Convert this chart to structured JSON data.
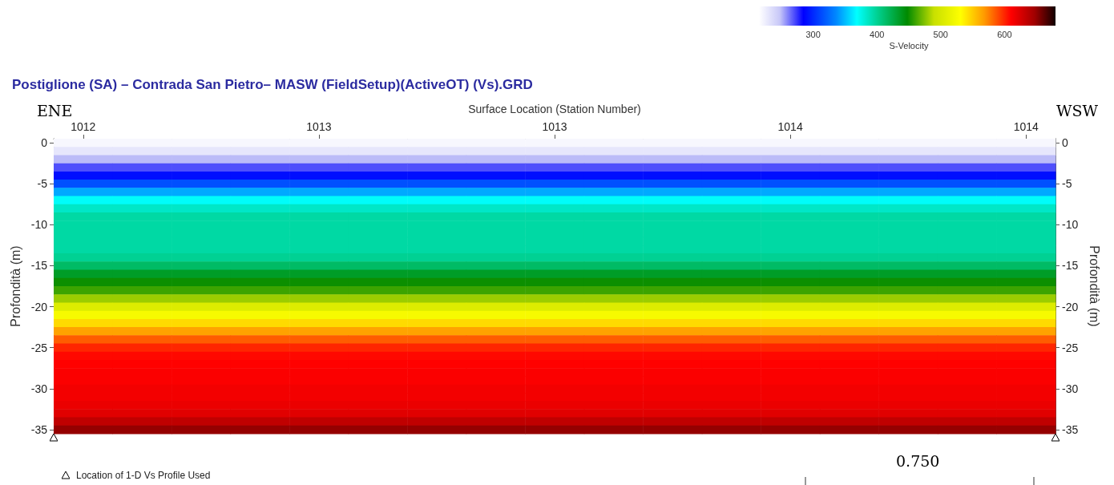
{
  "chart_data": {
    "type": "heatmap",
    "title": "Postiglione (SA) – Contrada San Pietro– MASW (FieldSetup)(ActiveOT) (Vs).GRD",
    "xlabel": "Surface Location (Station Number)",
    "ylabel": "Profondità (m)",
    "y2label": "Profondità (m)",
    "clabel": "S-Velocity",
    "annotations": [
      "ENE",
      "WSW",
      "0.750",
      "Location of 1-D Vs Profile Used"
    ],
    "categories": [
      "1012",
      null,
      null,
      null,
      "1013",
      null,
      null,
      null,
      "1013",
      null,
      null,
      null,
      "1014",
      null,
      null,
      null,
      "1014"
    ],
    "y_categories": [
      "0",
      null,
      null,
      null,
      null,
      "-5",
      null,
      null,
      null,
      null,
      "-10",
      null,
      null,
      null,
      null,
      "-15",
      null,
      null,
      null,
      null,
      "-20",
      null,
      null,
      null,
      null,
      "-25",
      null,
      null,
      null,
      null,
      "-30",
      null,
      null,
      null,
      null,
      "-35"
    ],
    "y2_categories": [
      "0",
      null,
      null,
      null,
      null,
      "-5",
      null,
      null,
      null,
      null,
      "-10",
      null,
      null,
      null,
      null,
      "-15",
      null,
      null,
      null,
      null,
      "-20",
      null,
      null,
      null,
      null,
      "-25",
      null,
      null,
      null,
      null,
      "-30",
      null,
      null,
      null,
      null,
      "-35"
    ],
    "cells": [
      [
        220,
        220,
        220,
        220,
        220,
        220,
        220,
        220,
        220,
        220,
        220,
        220,
        220,
        220,
        220,
        220,
        220
      ],
      [
        230,
        230,
        230,
        230,
        230,
        230,
        230,
        230,
        230,
        230,
        230,
        230,
        230,
        230,
        230,
        230,
        230
      ],
      [
        250,
        250,
        250,
        250,
        250,
        250,
        250,
        250,
        250,
        250,
        250,
        250,
        250,
        250,
        250,
        250,
        250
      ],
      [
        270,
        270,
        270,
        270,
        270,
        270,
        270,
        270,
        270,
        270,
        270,
        270,
        270,
        270,
        270,
        270,
        270
      ],
      [
        290,
        290,
        290,
        290,
        290,
        290,
        290,
        290,
        290,
        290,
        290,
        290,
        290,
        290,
        290,
        290,
        290
      ],
      [
        315,
        315,
        315,
        315,
        315,
        315,
        315,
        315,
        315,
        315,
        315,
        315,
        315,
        315,
        315,
        315,
        315
      ],
      [
        345,
        345,
        345,
        345,
        345,
        345,
        345,
        345,
        345,
        345,
        345,
        345,
        345,
        345,
        345,
        345,
        345
      ],
      [
        370,
        370,
        370,
        370,
        370,
        370,
        370,
        370,
        370,
        370,
        370,
        370,
        370,
        370,
        370,
        370,
        370
      ],
      [
        385,
        385,
        385,
        385,
        385,
        385,
        385,
        385,
        385,
        385,
        385,
        385,
        385,
        385,
        385,
        385,
        385
      ],
      [
        395,
        395,
        395,
        395,
        395,
        395,
        395,
        395,
        395,
        395,
        395,
        395,
        395,
        395,
        395,
        395,
        395
      ],
      [
        395,
        395,
        395,
        395,
        395,
        395,
        395,
        395,
        395,
        395,
        395,
        395,
        395,
        395,
        395,
        395,
        395
      ],
      [
        395,
        395,
        395,
        395,
        395,
        395,
        395,
        395,
        395,
        395,
        395,
        395,
        395,
        395,
        395,
        395,
        395
      ],
      [
        395,
        395,
        395,
        395,
        395,
        395,
        395,
        395,
        395,
        395,
        395,
        395,
        395,
        395,
        395,
        395,
        395
      ],
      [
        395,
        395,
        395,
        395,
        395,
        395,
        395,
        395,
        395,
        395,
        395,
        395,
        395,
        395,
        395,
        395,
        395
      ],
      [
        400,
        400,
        400,
        400,
        400,
        400,
        400,
        400,
        400,
        400,
        400,
        400,
        400,
        400,
        400,
        400,
        400
      ],
      [
        415,
        415,
        415,
        415,
        415,
        415,
        415,
        415,
        415,
        415,
        415,
        415,
        415,
        415,
        415,
        415,
        415
      ],
      [
        435,
        435,
        435,
        435,
        435,
        435,
        435,
        435,
        435,
        435,
        435,
        435,
        435,
        435,
        435,
        435,
        435
      ],
      [
        450,
        450,
        450,
        450,
        450,
        450,
        450,
        450,
        450,
        450,
        450,
        450,
        450,
        450,
        450,
        450,
        450
      ],
      [
        460,
        460,
        460,
        460,
        460,
        460,
        460,
        460,
        460,
        460,
        460,
        460,
        460,
        460,
        460,
        460,
        460
      ],
      [
        480,
        480,
        480,
        480,
        480,
        480,
        480,
        480,
        480,
        480,
        480,
        480,
        480,
        480,
        480,
        480,
        480
      ],
      [
        505,
        505,
        505,
        505,
        505,
        505,
        505,
        505,
        505,
        505,
        505,
        505,
        505,
        505,
        505,
        505,
        505
      ],
      [
        525,
        525,
        525,
        525,
        525,
        525,
        525,
        525,
        525,
        525,
        525,
        525,
        525,
        525,
        525,
        525,
        525
      ],
      [
        545,
        545,
        545,
        545,
        545,
        545,
        545,
        545,
        545,
        545,
        545,
        545,
        545,
        545,
        545,
        545,
        545
      ],
      [
        565,
        565,
        565,
        565,
        565,
        565,
        565,
        565,
        565,
        565,
        565,
        565,
        565,
        565,
        565,
        565,
        565
      ],
      [
        585,
        585,
        585,
        585,
        585,
        585,
        585,
        585,
        585,
        585,
        585,
        585,
        585,
        585,
        585,
        585,
        585
      ],
      [
        600,
        600,
        600,
        600,
        600,
        600,
        600,
        600,
        600,
        600,
        600,
        600,
        600,
        600,
        600,
        600,
        600
      ],
      [
        608,
        608,
        608,
        608,
        608,
        608,
        608,
        608,
        608,
        608,
        608,
        608,
        608,
        608,
        608,
        608,
        608
      ],
      [
        610,
        610,
        610,
        610,
        610,
        610,
        610,
        610,
        610,
        610,
        610,
        610,
        610,
        610,
        610,
        610,
        610
      ],
      [
        612,
        612,
        612,
        612,
        612,
        612,
        612,
        612,
        612,
        612,
        612,
        612,
        612,
        612,
        612,
        612,
        612
      ],
      [
        612,
        612,
        612,
        612,
        612,
        612,
        612,
        612,
        612,
        612,
        612,
        612,
        612,
        612,
        612,
        612,
        612
      ],
      [
        615,
        615,
        615,
        615,
        615,
        615,
        615,
        615,
        615,
        615,
        615,
        615,
        615,
        615,
        615,
        615,
        615
      ],
      [
        615,
        615,
        615,
        615,
        615,
        615,
        615,
        615,
        615,
        615,
        615,
        615,
        615,
        615,
        615,
        615,
        615
      ],
      [
        618,
        618,
        618,
        618,
        618,
        618,
        618,
        618,
        618,
        618,
        618,
        618,
        618,
        618,
        618,
        618,
        618
      ],
      [
        622,
        622,
        622,
        622,
        622,
        622,
        622,
        622,
        622,
        622,
        622,
        622,
        622,
        622,
        622,
        622,
        622
      ],
      [
        635,
        635,
        635,
        635,
        635,
        635,
        635,
        635,
        635,
        635,
        635,
        635,
        635,
        635,
        635,
        635,
        635
      ],
      [
        650,
        650,
        650,
        650,
        650,
        650,
        650,
        650,
        650,
        650,
        650,
        650,
        650,
        650,
        650,
        650,
        650
      ]
    ],
    "clim": [
      215,
      680
    ],
    "cticks": [
      300,
      400,
      500,
      600
    ]
  }
}
